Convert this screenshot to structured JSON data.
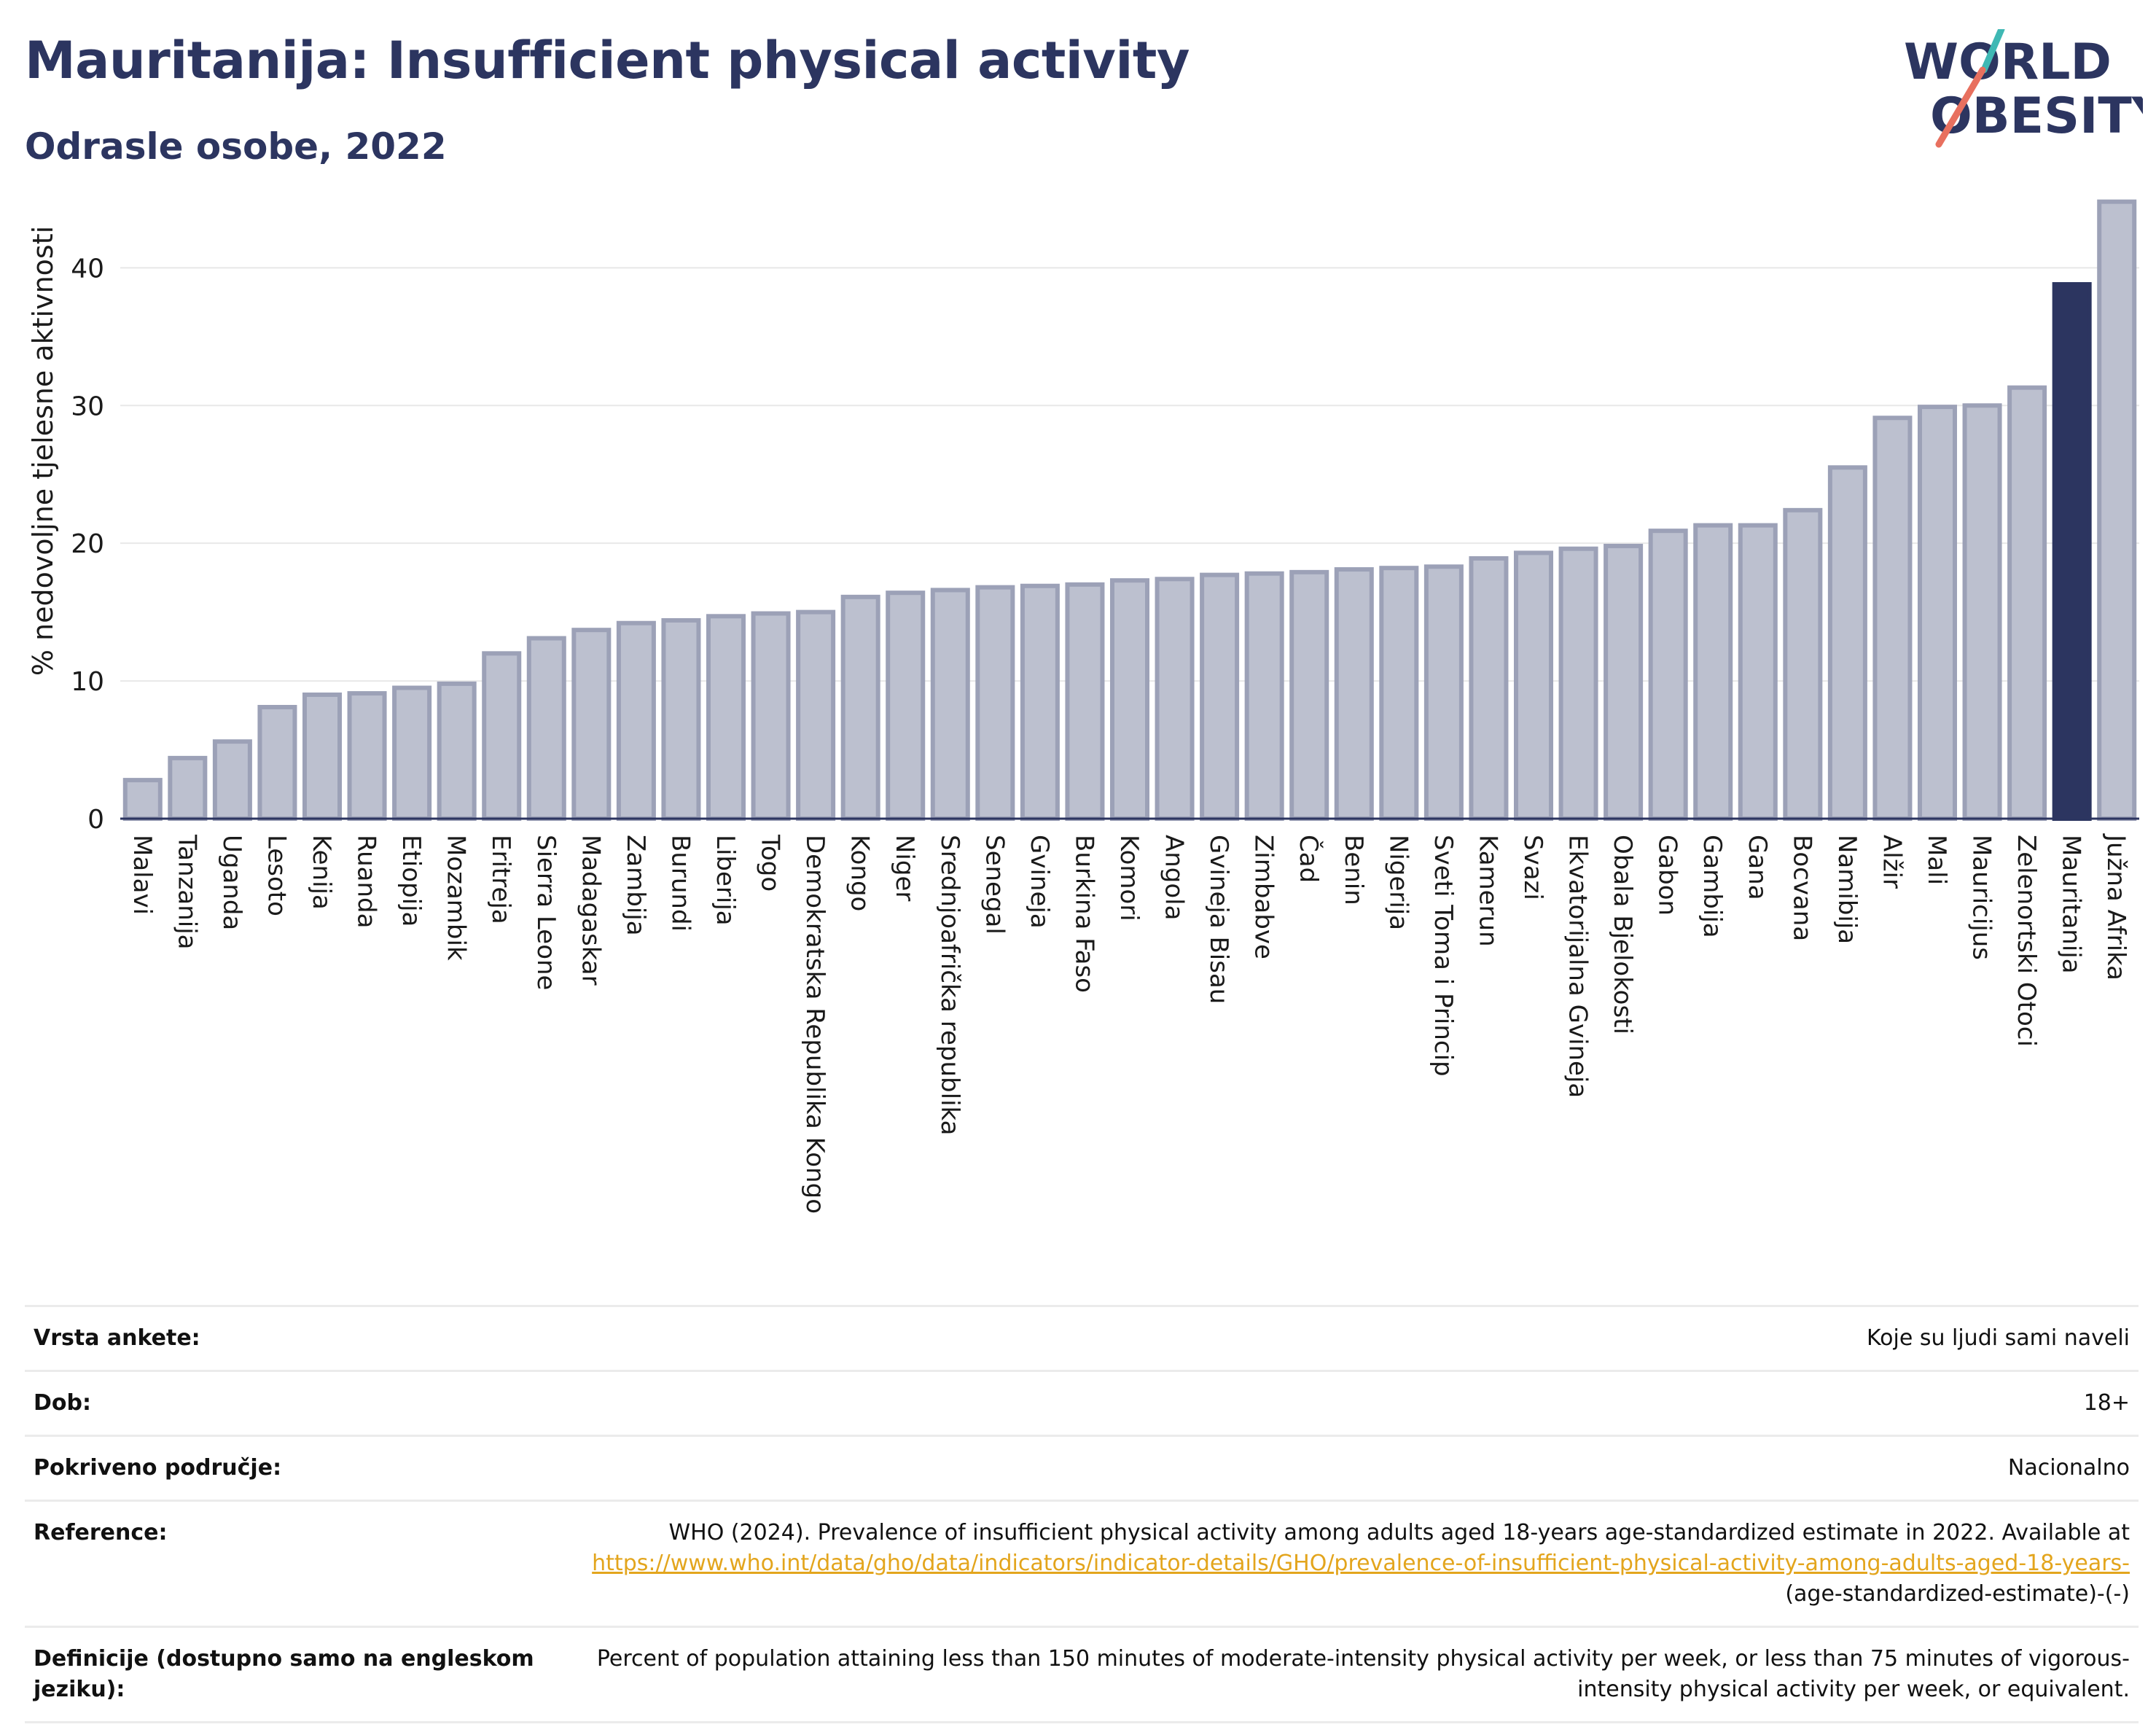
{
  "header": {
    "title": "Mauritanija: Insufficient physical activity",
    "subtitle": "Odrasle osobe, 2022"
  },
  "logo": {
    "line1": "WORLD",
    "line2": "OBESITY",
    "colors": {
      "navy": "#2c3560",
      "teal": "#3fb8b4",
      "coral": "#e8705f"
    }
  },
  "chart_data": {
    "type": "bar",
    "ylabel": "% nedovoljne tjelesne aktivnosti",
    "xlabel": "",
    "ylim": [
      0,
      46
    ],
    "yticks": [
      0,
      10,
      20,
      30,
      40
    ],
    "grid": true,
    "highlight_category": "Mauritanija",
    "colors": {
      "bar": "#bcc0cf",
      "bar_edge": "#9ca1b7",
      "highlight": "#2c3560"
    },
    "categories": [
      "Malavi",
      "Tanzanija",
      "Uganda",
      "Lesoto",
      "Kenija",
      "Ruanda",
      "Etiopija",
      "Mozambik",
      "Eritreja",
      "Sierra Leone",
      "Madagaskar",
      "Zambija",
      "Burundi",
      "Liberija",
      "Togo",
      "Demokratska Republika Kongo",
      "Kongo",
      "Niger",
      "Srednjoafrička republika",
      "Senegal",
      "Gvineja",
      "Burkina Faso",
      "Komori",
      "Angola",
      "Gvineja Bisau",
      "Zimbabve",
      "Čad",
      "Benin",
      "Nigerija",
      "Sveti Toma i Princip",
      "Kamerun",
      "Svazi",
      "Ekvatorijalna Gvineja",
      "Obala Bjelokosti",
      "Gabon",
      "Gambija",
      "Gana",
      "Bocvana",
      "Namibija",
      "Alžir",
      "Mali",
      "Mauricijus",
      "Zelenortski Otoci",
      "Mauritanija",
      "Južna Afrika"
    ],
    "values": [
      2.8,
      4.4,
      5.6,
      8.1,
      9.0,
      9.1,
      9.5,
      9.8,
      12.0,
      13.1,
      13.7,
      14.2,
      14.4,
      14.7,
      14.9,
      15.0,
      16.1,
      16.4,
      16.6,
      16.8,
      16.9,
      17.0,
      17.3,
      17.4,
      17.7,
      17.8,
      17.9,
      18.1,
      18.2,
      18.3,
      18.9,
      19.3,
      19.6,
      19.8,
      20.9,
      21.3,
      21.3,
      22.4,
      25.5,
      29.1,
      29.9,
      30.0,
      31.3,
      38.8,
      44.8
    ]
  },
  "info": {
    "survey_type": {
      "label": "Vrsta ankete:",
      "value": "Koje su ljudi sami naveli"
    },
    "age": {
      "label": "Dob:",
      "value": "18+"
    },
    "coverage": {
      "label": "Pokriveno područje:",
      "value": "Nacionalno"
    },
    "reference": {
      "label": "Reference:",
      "text": "WHO (2024). Prevalence of insufficient physical activity among adults aged 18-years age-standardized estimate in 2022. Available at",
      "link": "https://www.who.int/data/gho/data/indicators/indicator-details/GHO/prevalence-of-insufficient-physical-activity-among-adults-aged-18-years-",
      "suffix": "(age-standardized-estimate)-(-)"
    },
    "definition": {
      "label": "Definicije (dostupno samo na engleskom jeziku):",
      "value": "Percent of population attaining less than 150 minutes of moderate-intensity physical activity per week, or less than 75 minutes of vigorous-intensity physical activity per week, or equivalent."
    }
  }
}
